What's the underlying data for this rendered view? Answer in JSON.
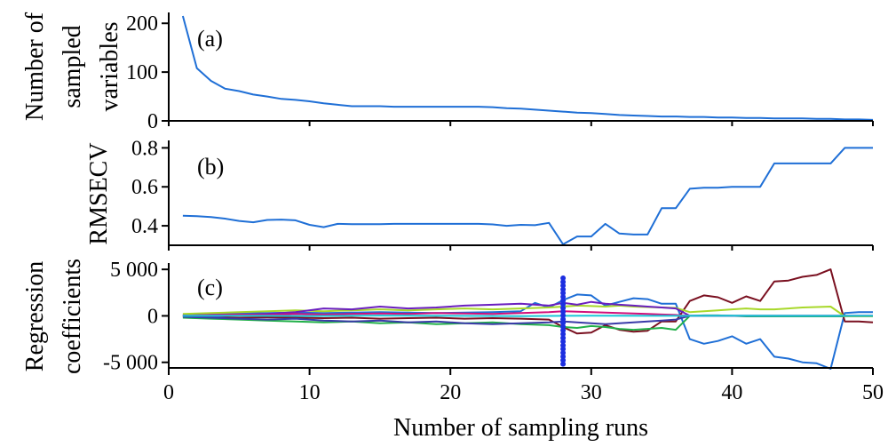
{
  "chart_data": [
    {
      "id": "a",
      "type": "line",
      "panel_label": "(a)",
      "ylabel": [
        "Number of",
        "sampled",
        "variables"
      ],
      "xlim": [
        0,
        50
      ],
      "ylim": [
        0,
        215
      ],
      "yticks": [
        0,
        100,
        200
      ],
      "ytick_labels": [
        "0",
        "100",
        "200"
      ],
      "series": [
        {
          "color": "#1f6fd6",
          "x": [
            1,
            2,
            3,
            4,
            5,
            6,
            7,
            8,
            9,
            10,
            11,
            12,
            13,
            14,
            15,
            16,
            17,
            18,
            19,
            20,
            21,
            22,
            23,
            24,
            25,
            26,
            27,
            28,
            29,
            30,
            31,
            32,
            33,
            34,
            35,
            36,
            37,
            38,
            39,
            40,
            41,
            42,
            43,
            44,
            45,
            46,
            47,
            48,
            49,
            50
          ],
          "y": [
            215,
            108,
            82,
            66,
            61,
            54,
            50,
            45,
            43,
            40,
            36,
            33,
            30,
            30,
            30,
            29,
            29,
            29,
            29,
            29,
            29,
            29,
            28,
            26,
            25,
            23,
            21,
            19,
            17,
            16,
            14,
            12,
            11,
            10,
            9,
            9,
            8,
            8,
            7,
            7,
            6,
            6,
            5,
            5,
            5,
            4,
            4,
            3,
            3,
            2
          ]
        }
      ]
    },
    {
      "id": "b",
      "type": "line",
      "panel_label": "(b)",
      "ylabel": [
        "RMSECV"
      ],
      "xlim": [
        0,
        50
      ],
      "ylim": [
        0.3,
        0.82
      ],
      "yticks": [
        0.4,
        0.6,
        0.8
      ],
      "ytick_labels": [
        "0.4",
        "0.6",
        "0.8"
      ],
      "series": [
        {
          "color": "#1f6fd6",
          "x": [
            1,
            2,
            3,
            4,
            5,
            6,
            7,
            8,
            9,
            10,
            11,
            12,
            13,
            14,
            15,
            16,
            17,
            18,
            19,
            20,
            21,
            22,
            23,
            24,
            25,
            26,
            27,
            28,
            29,
            30,
            31,
            32,
            33,
            34,
            35,
            36,
            37,
            38,
            39,
            40,
            41,
            42,
            43,
            44,
            45,
            46,
            47,
            48,
            49,
            50
          ],
          "y": [
            0.452,
            0.449,
            0.445,
            0.437,
            0.425,
            0.418,
            0.43,
            0.432,
            0.428,
            0.405,
            0.393,
            0.41,
            0.408,
            0.408,
            0.408,
            0.41,
            0.41,
            0.41,
            0.41,
            0.41,
            0.41,
            0.41,
            0.407,
            0.4,
            0.405,
            0.403,
            0.415,
            0.305,
            0.345,
            0.345,
            0.41,
            0.36,
            0.355,
            0.355,
            0.49,
            0.49,
            0.59,
            0.595,
            0.595,
            0.6,
            0.6,
            0.6,
            0.72,
            0.72,
            0.72,
            0.72,
            0.72,
            0.8,
            0.8,
            0.8
          ]
        }
      ]
    },
    {
      "id": "c",
      "type": "line",
      "panel_label": "(c)",
      "ylabel": [
        "Regression",
        "coefficients"
      ],
      "xlabel": "Number of sampling runs",
      "xlim": [
        0,
        50
      ],
      "xticks": [
        0,
        10,
        20,
        30,
        40,
        50
      ],
      "xtick_labels": [
        "0",
        "10",
        "20",
        "30",
        "40",
        "50"
      ],
      "ylim": [
        -5600,
        5300
      ],
      "yticks": [
        -5000,
        0,
        5000
      ],
      "ytick_labels": [
        "-5 000",
        "0",
        "5 000"
      ],
      "marker_x": 28,
      "marker_color": "#1c2ee0",
      "series": [
        {
          "color": "#1f6fd6",
          "x": [
            1,
            3,
            5,
            7,
            9,
            11,
            13,
            15,
            17,
            19,
            21,
            23,
            25,
            26,
            27,
            28,
            29,
            30,
            31,
            32,
            33,
            34,
            35,
            36,
            37,
            38,
            39,
            40,
            41,
            42,
            43,
            44,
            45,
            46,
            47,
            48,
            49,
            50
          ],
          "y": [
            100,
            200,
            250,
            300,
            350,
            300,
            350,
            400,
            350,
            300,
            350,
            400,
            500,
            1400,
            900,
            1700,
            2300,
            2200,
            1100,
            1500,
            1900,
            1800,
            1300,
            1300,
            -2500,
            -3000,
            -2700,
            -2200,
            -3000,
            -2500,
            -4400,
            -4600,
            -5000,
            -5100,
            -5700,
            300,
            400,
            400
          ]
        },
        {
          "color": "#7a1020",
          "x": [
            1,
            3,
            5,
            7,
            9,
            11,
            13,
            15,
            17,
            19,
            21,
            23,
            25,
            27,
            28,
            29,
            30,
            31,
            32,
            33,
            34,
            35,
            36,
            37,
            38,
            39,
            40,
            41,
            42,
            43,
            44,
            45,
            46,
            47,
            48,
            49,
            50
          ],
          "y": [
            0,
            -100,
            -200,
            -150,
            -200,
            -250,
            -200,
            -300,
            -250,
            -200,
            -300,
            -250,
            -300,
            -400,
            -1200,
            -1900,
            -1800,
            -1000,
            -1500,
            -1700,
            -1600,
            -600,
            -600,
            1600,
            2200,
            2000,
            1400,
            2100,
            1600,
            3700,
            3800,
            4200,
            4400,
            5000,
            -600,
            -600,
            -700
          ]
        },
        {
          "color": "#22b04a",
          "x": [
            1,
            3,
            5,
            7,
            9,
            11,
            13,
            15,
            17,
            19,
            21,
            23,
            25,
            27,
            28,
            29,
            30,
            31,
            32,
            33,
            34,
            35,
            36,
            37,
            38,
            39,
            40,
            41,
            42,
            43,
            44,
            45,
            46,
            47,
            48,
            49,
            50
          ],
          "y": [
            -200,
            -300,
            -400,
            -500,
            -600,
            -700,
            -600,
            -800,
            -700,
            -900,
            -800,
            -700,
            -900,
            -1000,
            -1200,
            -1300,
            -1100,
            -1200,
            -1400,
            -1500,
            -1400,
            -1300,
            -1500,
            0,
            50,
            50,
            0,
            -50,
            -50,
            -50,
            -50,
            -50,
            -50,
            -50,
            -50,
            -50,
            -50
          ]
        },
        {
          "color": "#a8d82a",
          "x": [
            1,
            3,
            5,
            7,
            9,
            11,
            13,
            15,
            17,
            19,
            21,
            23,
            25,
            27,
            28,
            29,
            30,
            31,
            32,
            33,
            34,
            35,
            36,
            37,
            38,
            39,
            40,
            41,
            42,
            43,
            44,
            45,
            46,
            47,
            48,
            49,
            50
          ],
          "y": [
            200,
            300,
            400,
            500,
            600,
            500,
            600,
            700,
            600,
            700,
            800,
            700,
            800,
            900,
            1000,
            1100,
            1050,
            1000,
            1100,
            1000,
            950,
            900,
            850,
            400,
            500,
            600,
            700,
            800,
            700,
            700,
            800,
            900,
            950,
            1000,
            -50,
            -50,
            -50
          ]
        },
        {
          "color": "#6a1fbf",
          "x": [
            1,
            3,
            5,
            7,
            9,
            11,
            13,
            15,
            17,
            19,
            21,
            23,
            25,
            27,
            28,
            29,
            30,
            31,
            32,
            33,
            34,
            35,
            36,
            37,
            38,
            39,
            40,
            41,
            42,
            43,
            44,
            45,
            46,
            47,
            48,
            49,
            50
          ],
          "y": [
            50,
            -100,
            100,
            200,
            400,
            800,
            700,
            1000,
            800,
            900,
            1100,
            1200,
            1300,
            1100,
            1400,
            1200,
            1500,
            1300,
            1200,
            1100,
            1000,
            900,
            800,
            0,
            0,
            0,
            0,
            0,
            0,
            0,
            0,
            0,
            0,
            0,
            0,
            0,
            0
          ]
        },
        {
          "color": "#d0107a",
          "x": [
            1,
            3,
            5,
            7,
            9,
            11,
            13,
            15,
            17,
            19,
            21,
            23,
            25,
            27,
            28,
            29,
            30,
            31,
            32,
            33,
            34,
            35,
            36,
            37,
            38,
            39,
            40,
            41,
            42,
            43,
            44,
            45,
            46,
            47,
            48,
            49,
            50
          ],
          "y": [
            0,
            100,
            150,
            100,
            200,
            150,
            200,
            250,
            200,
            300,
            250,
            200,
            300,
            400,
            500,
            450,
            400,
            350,
            300,
            250,
            200,
            150,
            100,
            0,
            0,
            0,
            0,
            0,
            0,
            0,
            0,
            0,
            0,
            0,
            0,
            0,
            0
          ]
        },
        {
          "color": "#3a3aa8",
          "x": [
            1,
            3,
            5,
            7,
            9,
            11,
            13,
            15,
            17,
            19,
            21,
            23,
            25,
            27,
            28,
            29,
            30,
            31,
            32,
            33,
            34,
            35,
            36,
            37,
            38,
            39,
            40,
            41,
            42,
            43,
            44,
            45,
            46,
            47,
            48,
            49,
            50
          ],
          "y": [
            -100,
            -200,
            -300,
            -400,
            -300,
            -500,
            -600,
            -500,
            -700,
            -600,
            -800,
            -900,
            -800,
            -700,
            -600,
            -700,
            -800,
            -900,
            -800,
            -700,
            -600,
            -500,
            -400,
            0,
            0,
            0,
            0,
            0,
            0,
            0,
            0,
            0,
            0,
            0,
            0,
            0,
            0
          ]
        },
        {
          "color": "#1bc8d8",
          "x": [
            1,
            5,
            10,
            15,
            20,
            25,
            30,
            35,
            40,
            45,
            50
          ],
          "y": [
            0,
            20,
            -20,
            30,
            0,
            -30,
            20,
            0,
            10,
            0,
            0
          ]
        }
      ]
    }
  ]
}
